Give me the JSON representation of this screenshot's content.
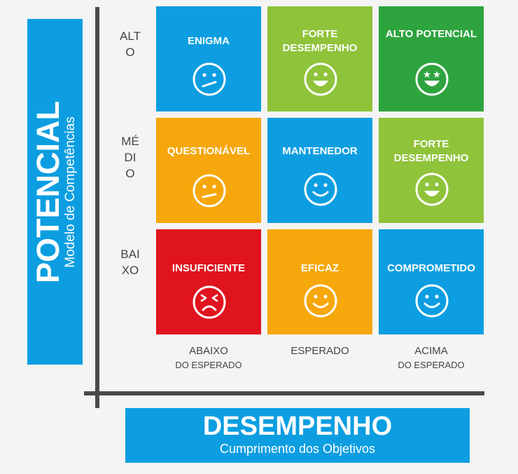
{
  "potencial": {
    "title": "POTENCIAL",
    "subtitle": "Modelo de Competências"
  },
  "desempenho": {
    "title": "DESEMPENHO",
    "subtitle": "Cumprimento dos Objetivos"
  },
  "rows": [
    {
      "label": "ALTO"
    },
    {
      "label": "MÉDIO"
    },
    {
      "label": "BAIXO"
    }
  ],
  "columns": [
    {
      "line1": "ABAIXO",
      "line2": "DO ESPERADO"
    },
    {
      "line1": "ESPERADO",
      "line2": ""
    },
    {
      "line1": "ACIMA",
      "line2": "DO ESPERADO"
    }
  ],
  "cells": [
    {
      "label": "ENIGMA",
      "color": "#0c9ee1",
      "face": "confused-face-icon"
    },
    {
      "label": "FORTE DESEMPENHO",
      "color": "#8fc33a",
      "face": "big-smile-face-icon"
    },
    {
      "label": "ALTO POTENCIAL",
      "color": "#2ea43e",
      "face": "star-eyes-face-icon"
    },
    {
      "label": "QUESTIONÁVEL",
      "color": "#f6a70b",
      "face": "skeptical-face-icon"
    },
    {
      "label": "MANTENEDOR",
      "color": "#0c9ee1",
      "face": "smile-face-icon"
    },
    {
      "label": "FORTE DESEMPENHO",
      "color": "#8fc33a",
      "face": "big-smile-face-icon"
    },
    {
      "label": "INSUFICIENTE",
      "color": "#e0141e",
      "face": "upset-face-icon"
    },
    {
      "label": "EFICAZ",
      "color": "#f6a70b",
      "face": "smile-face-icon"
    },
    {
      "label": "COMPROMETIDO",
      "color": "#0c9ee1",
      "face": "smile-face-icon"
    }
  ]
}
